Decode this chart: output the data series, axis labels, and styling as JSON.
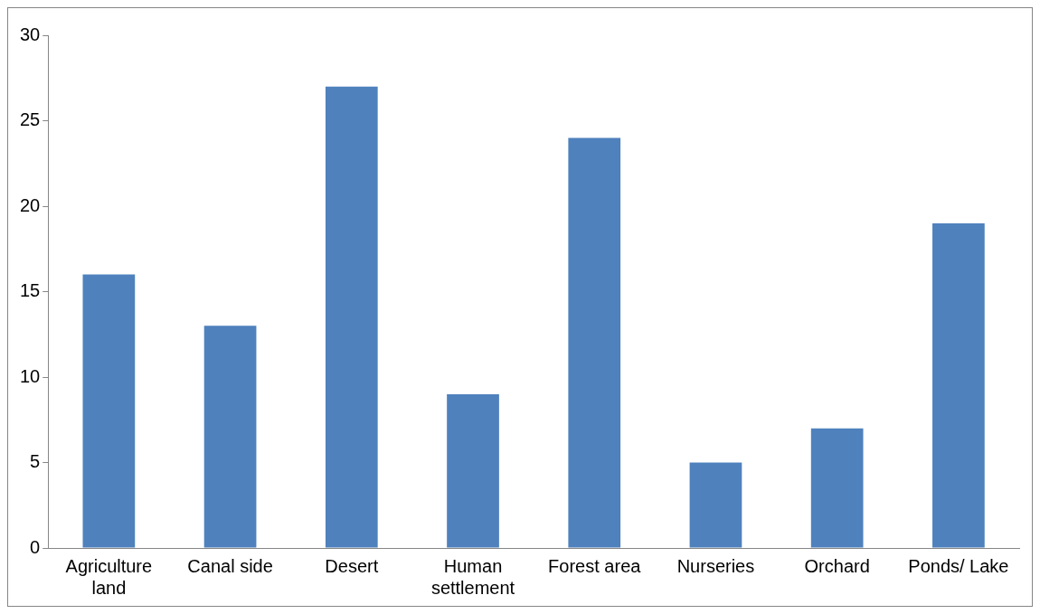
{
  "chart_data": {
    "type": "bar",
    "categories": [
      "Agriculture land",
      "Canal side",
      "Desert",
      "Human settlement",
      "Forest area",
      "Nurseries",
      "Orchard",
      "Ponds/ Lake"
    ],
    "values": [
      16,
      13,
      27,
      9,
      24,
      5,
      7,
      19
    ],
    "color": "#4f81bd",
    "ylim": [
      0,
      30
    ],
    "yticks": [
      0,
      5,
      10,
      15,
      20,
      25,
      30
    ],
    "grid": false,
    "legend": false
  }
}
